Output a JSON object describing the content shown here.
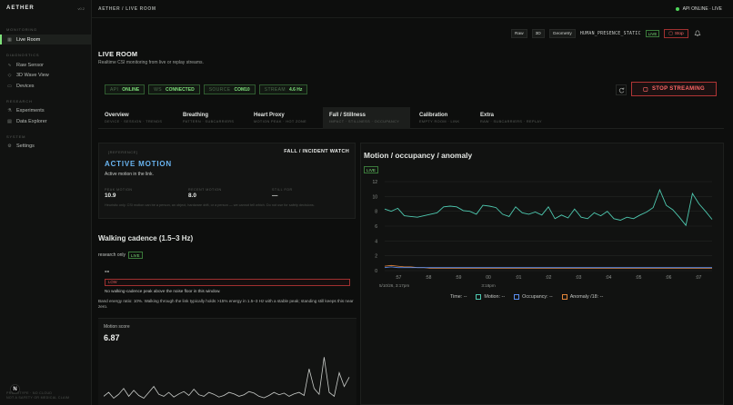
{
  "sidebar": {
    "brand": "AETHER",
    "version": "v0.2",
    "sections": [
      {
        "title": "MONITORING",
        "items": [
          {
            "label": "Live Room",
            "icon": "grid-icon",
            "active": true
          }
        ]
      },
      {
        "title": "DIAGNOSTICS",
        "items": [
          {
            "label": "Raw Sensor",
            "icon": "wave-icon"
          },
          {
            "label": "3D Wave View",
            "icon": "cube-icon"
          },
          {
            "label": "Devices",
            "icon": "device-icon"
          }
        ]
      },
      {
        "title": "RESEARCH",
        "items": [
          {
            "label": "Experiments",
            "icon": "flask-icon"
          },
          {
            "label": "Data Explorer",
            "icon": "table-icon"
          }
        ]
      },
      {
        "title": "SYSTEM",
        "items": [
          {
            "label": "Settings",
            "icon": "gear-icon"
          }
        ]
      }
    ],
    "footer_line1": "PROTOTYPE · NO CLOUD",
    "footer_line2": "NOT A SAFETY OR MEDICAL CLAIM",
    "badge": "N"
  },
  "topbar": {
    "breadcrumb": "AETHER / LIVE ROOM",
    "api_status": "API ONLINE · LIVE"
  },
  "controls": {
    "raw": "Raw",
    "three_d": "3D",
    "geometry": "Geometry",
    "mode": "HUMAN_PRESENCE_STATIC",
    "live": "LIVE",
    "stop": "Stop"
  },
  "page": {
    "title": "LIVE ROOM",
    "subtitle": "Realtime CSI monitoring from live or replay streams."
  },
  "status_pills": [
    {
      "key": "API",
      "value": "ONLINE"
    },
    {
      "key": "WS",
      "value": "CONNECTED"
    },
    {
      "key": "SOURCE",
      "value": "COM10"
    },
    {
      "key": "STREAM",
      "value": "4.6 Hz"
    }
  ],
  "stop_streaming": "STOP STREAMING",
  "tabs": [
    {
      "title": "Overview",
      "sub": "DEVICE · SESSION · TRENDS"
    },
    {
      "title": "Breathing",
      "sub": "PATTERN · SUBCARRIERS"
    },
    {
      "title": "Heart Proxy",
      "sub": "MOTION PEAK · HOT ZONE"
    },
    {
      "title": "Fall / Stillness",
      "sub": "IMPACT · STILLNESS · OCCUPANCY",
      "active": true
    },
    {
      "title": "Calibration",
      "sub": "EMPTY ROOM · LINK"
    },
    {
      "title": "Extra",
      "sub": "RAW · SUBCARRIERS · REPLAY"
    }
  ],
  "fall": {
    "reference": "[REFERENCE]",
    "watch": "FALL / INCIDENT WATCH",
    "state": "ACTIVE MOTION",
    "description": "Active motion in the link.",
    "metrics": [
      {
        "key": "PEAK MOTION",
        "value": "10.9"
      },
      {
        "key": "RECENT MOTION",
        "value": "8.0"
      },
      {
        "key": "STILL FOR",
        "value": "—"
      }
    ],
    "note": "Heuristic only. CSI motion can be a person, an object, hardware drift, or a person — we cannot tell which. Do not use for safety decisions."
  },
  "walking": {
    "title": "Walking cadence (1.5–3 Hz)",
    "research": "research only",
    "live": "LIVE",
    "value": "--",
    "bar_label": "LOW",
    "bar_level": 0.0,
    "note1": "No walking-cadence peak above the noise floor in this window.",
    "note2": "Band energy ratio: 10%. Walking through the link typically holds >15% energy in 1.5–3 Hz with a stable peak; standing still keeps this near zero."
  },
  "motion_score": {
    "label": "Motion score",
    "value": "6.87",
    "spark": [
      2,
      3,
      1.5,
      2.5,
      4,
      2,
      3.5,
      2.2,
      1.5,
      3,
      4.5,
      2.5,
      2,
      3,
      1.8,
      2.6,
      3.2,
      2.2,
      3.8,
      2.4,
      2,
      3,
      2.5,
      1.8,
      2.2,
      3,
      2.6,
      2,
      2.4,
      3.2,
      2.8,
      2,
      1.6,
      2.2,
      3,
      2.4,
      2.8,
      2,
      2.6,
      3,
      2.2,
      9,
      4,
      2.5,
      12,
      3,
      2,
      8,
      4.5,
      6.9
    ]
  },
  "chart": {
    "title": "Motion / occupancy / anomaly",
    "live": "LIVE",
    "legend_time": "Time: --",
    "legend": [
      {
        "name": "Motion: --",
        "color": "#4ec9b0"
      },
      {
        "name": "Occupancy: --",
        "color": "#5b8ef0"
      },
      {
        "name": "Anomaly /18: --",
        "color": "#e2853a"
      }
    ]
  },
  "chart_data": {
    "type": "line",
    "title": "Motion / occupancy / anomaly",
    "xlabel": "",
    "ylabel": "",
    "ylim": [
      0,
      12
    ],
    "yticks": [
      0,
      2,
      4,
      6,
      8,
      10,
      12
    ],
    "xticks": [
      ":57",
      ":58",
      ":59",
      "00",
      ":01",
      ":02",
      ":03",
      ":04",
      ":05",
      ":06",
      ":07"
    ],
    "x_date_labels": [
      "5/10/26, 3:17pm",
      "3:18pm"
    ],
    "grid": true,
    "series": [
      {
        "name": "Motion",
        "color": "#4ec9b0",
        "values": [
          8.3,
          8.0,
          8.4,
          7.4,
          7.3,
          7.2,
          7.4,
          7.6,
          7.8,
          8.6,
          8.7,
          8.6,
          8.1,
          8.0,
          7.6,
          8.8,
          8.7,
          8.5,
          7.6,
          7.3,
          8.6,
          7.8,
          7.6,
          7.9,
          7.5,
          8.6,
          7.0,
          7.5,
          7.1,
          8.3,
          7.2,
          7.0,
          7.8,
          7.4,
          8.0,
          7.0,
          6.8,
          7.2,
          7.0,
          7.5,
          7.9,
          8.5,
          10.9,
          8.8,
          8.2,
          7.2,
          6.1,
          10.4,
          9.0,
          8.0,
          6.9
        ]
      },
      {
        "name": "Occupancy",
        "color": "#5b8ef0",
        "values": [
          0.4,
          0.5,
          0.4,
          0.4,
          0.4,
          0.4,
          0.4,
          0.4,
          0.4,
          0.4,
          0.4,
          0.4,
          0.4,
          0.4,
          0.4,
          0.4,
          0.4,
          0.4,
          0.4,
          0.4,
          0.4,
          0.4,
          0.4,
          0.4,
          0.4,
          0.4,
          0.4,
          0.4,
          0.4,
          0.4,
          0.4,
          0.4,
          0.4,
          0.4,
          0.4,
          0.4,
          0.4,
          0.4,
          0.4,
          0.4,
          0.4,
          0.4,
          0.4,
          0.4,
          0.4,
          0.4,
          0.4,
          0.4,
          0.4,
          0.4,
          0.4
        ]
      },
      {
        "name": "Anomaly /18",
        "color": "#e2853a",
        "values": [
          0.6,
          0.7,
          0.6,
          0.5,
          0.5,
          0.4,
          0.4,
          0.3,
          0.3,
          0.3,
          0.3,
          0.3,
          0.3,
          0.3,
          0.3,
          0.3,
          0.3,
          0.3,
          0.3,
          0.3,
          0.3,
          0.3,
          0.3,
          0.3,
          0.3,
          0.3,
          0.3,
          0.3,
          0.3,
          0.3,
          0.3,
          0.3,
          0.3,
          0.3,
          0.3,
          0.3,
          0.3,
          0.3,
          0.3,
          0.3,
          0.3,
          0.3,
          0.3,
          0.3,
          0.3,
          0.3,
          0.3,
          0.3,
          0.3,
          0.3,
          0.3
        ]
      }
    ]
  }
}
